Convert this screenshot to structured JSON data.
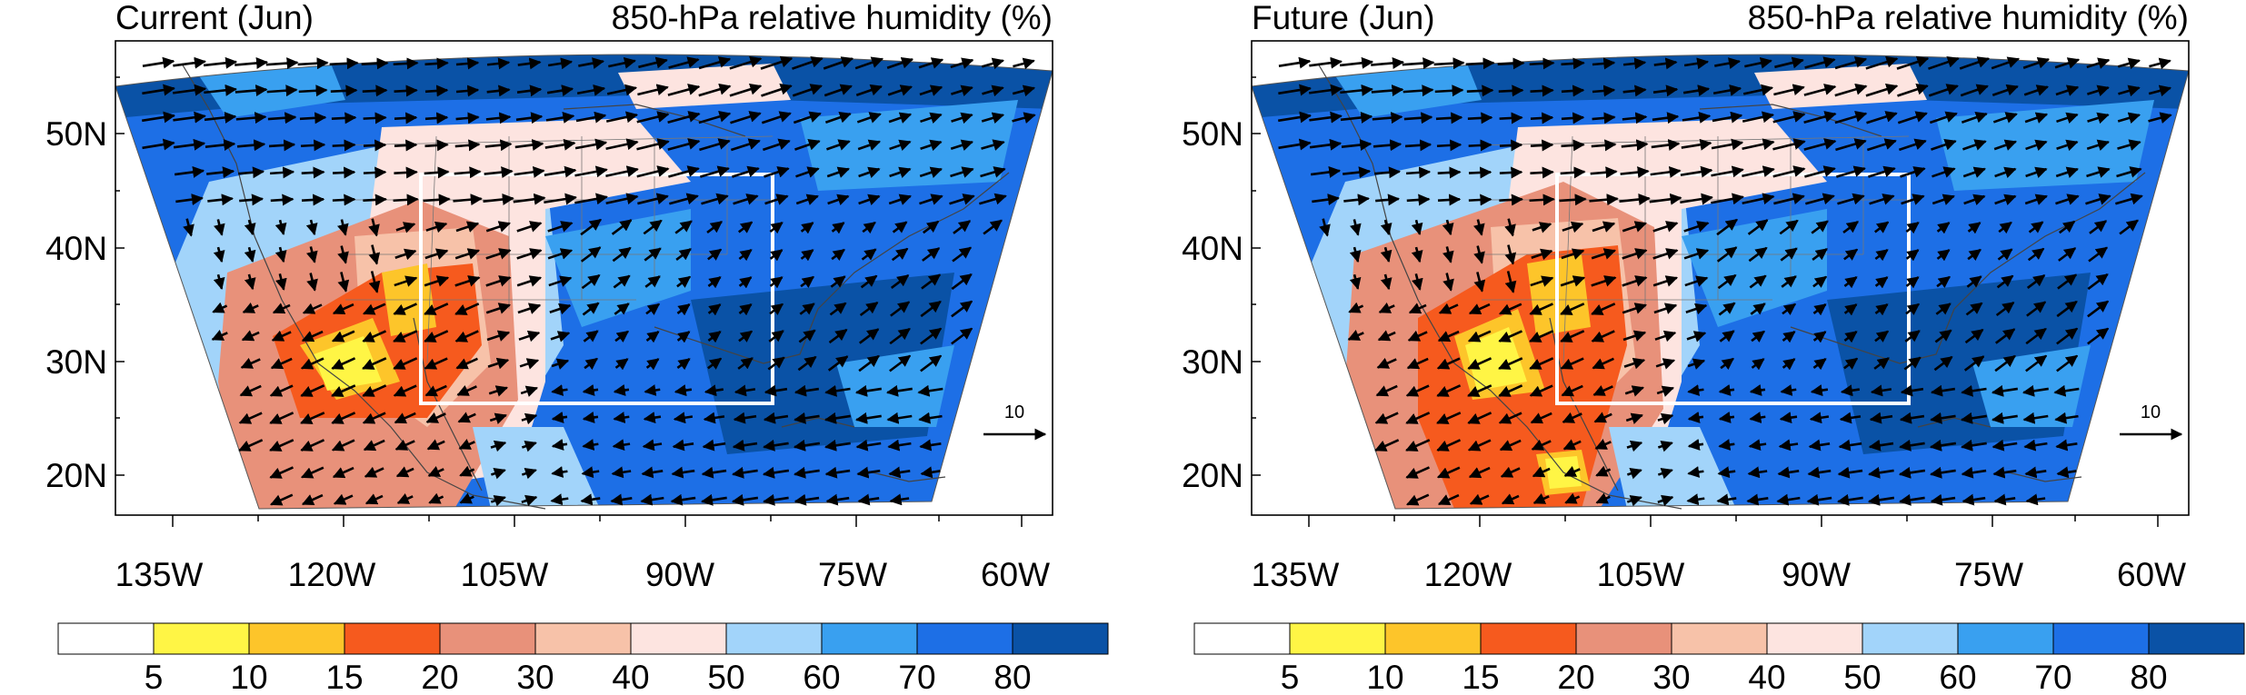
{
  "colorbar": {
    "labels": [
      "5",
      "10",
      "15",
      "20",
      "30",
      "40",
      "50",
      "60",
      "70",
      "80"
    ],
    "colors": [
      "#ffffff",
      "#fff545",
      "#fdc52a",
      "#f65a1e",
      "#e8917a",
      "#f7c2a9",
      "#fde4e0",
      "#a2d4fa",
      "#39a0f0",
      "#1d6fe6",
      "#0a52a6"
    ]
  },
  "panels": [
    {
      "title_left": "Current (Jun)",
      "title_right": "850-hPa relative humidity (%)",
      "lat_labels": [
        "50N",
        "40N",
        "30N",
        "20N"
      ],
      "lon_labels": [
        "135W",
        "120W",
        "105W",
        "90W",
        "75W",
        "60W"
      ],
      "ref_vector": "10"
    },
    {
      "title_left": "Future (Jun)",
      "title_right": "850-hPa relative humidity (%)",
      "lat_labels": [
        "50N",
        "40N",
        "30N",
        "20N"
      ],
      "lon_labels": [
        "135W",
        "120W",
        "105W",
        "90W",
        "75W",
        "60W"
      ],
      "ref_vector": "10"
    }
  ]
}
